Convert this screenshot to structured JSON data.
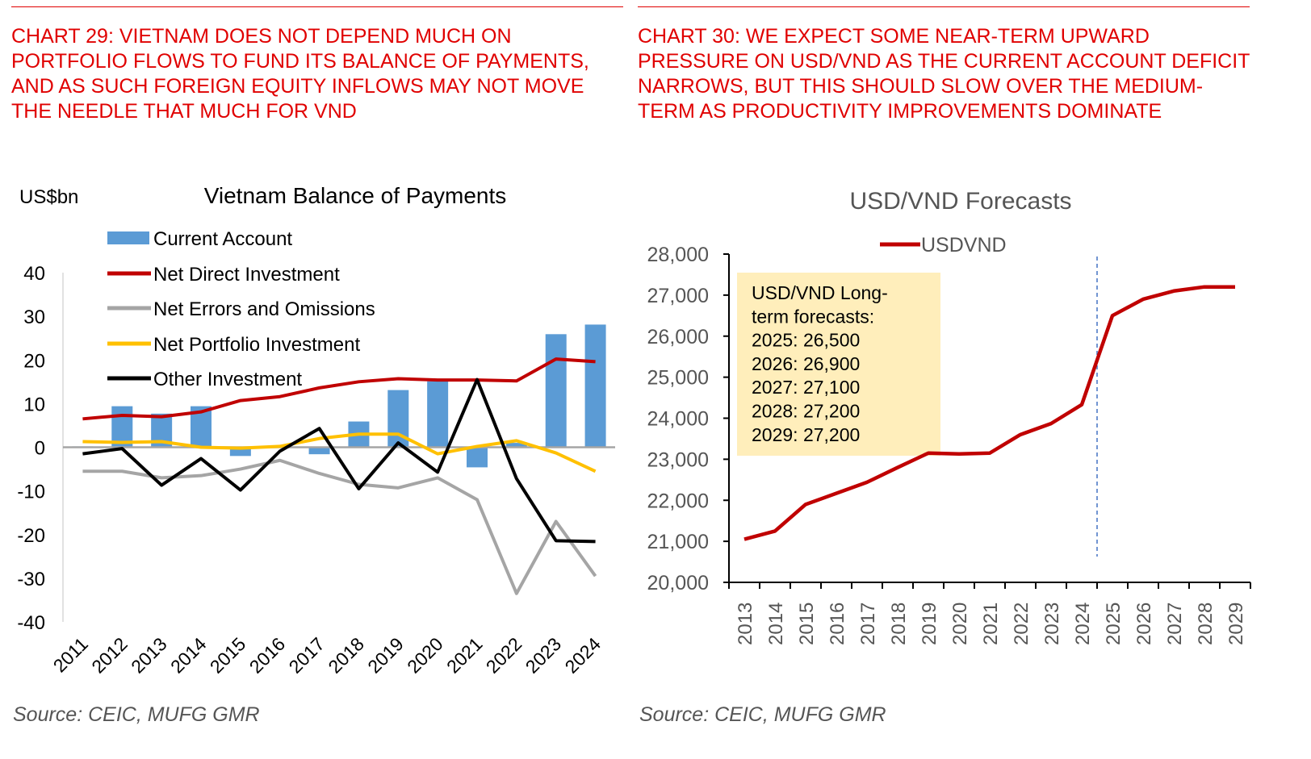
{
  "left": {
    "header": "Chart 29: Vietnam does not depend much on portfolio flows to fund its balance of payments, and as such foreign equity inflows may not move the needle that much for VND",
    "source": "Source: CEIC, MUFG GMR"
  },
  "right": {
    "header": "Chart 30: We expect some near-term upward pressure on USD/VND as the current account deficit narrows, but this should slow over the medium-term as productivity improvements dominate",
    "source": "Source: CEIC, MUFG GMR"
  },
  "chart_data": [
    {
      "type": "bar+line",
      "title": "Vietnam Balance of Payments",
      "ylabel": "US$bn",
      "ylim": [
        -40,
        40
      ],
      "yticks": [
        40,
        30,
        20,
        10,
        0,
        -10,
        -20,
        -30,
        -40
      ],
      "categories": [
        "2011",
        "2012",
        "2013",
        "2014",
        "2015",
        "2016",
        "2017",
        "2018",
        "2019",
        "2020",
        "2021",
        "2022",
        "2023",
        "2024"
      ],
      "legend_position": "top-left",
      "series": [
        {
          "name": "Current Account",
          "kind": "bar",
          "color": "#5b9bd5",
          "values": [
            0.2,
            9.4,
            7.7,
            9.4,
            -2.0,
            0.3,
            -1.6,
            5.9,
            13.1,
            15.1,
            -4.6,
            1.0,
            25.9,
            28.1
          ]
        },
        {
          "name": "Net Direct Investment",
          "kind": "line",
          "color": "#c00000",
          "values": [
            6.5,
            7.3,
            7.0,
            8.1,
            10.7,
            11.6,
            13.6,
            15.0,
            15.7,
            15.4,
            15.4,
            15.2,
            20.2,
            19.6
          ]
        },
        {
          "name": "Net Errors and Omissions",
          "kind": "line",
          "color": "#a5a5a5",
          "values": [
            -5.5,
            -5.5,
            -7.0,
            -6.5,
            -5.0,
            -3.0,
            -6.0,
            -8.5,
            -9.3,
            -7.0,
            -12.0,
            -33.5,
            -17.0,
            -29.5
          ]
        },
        {
          "name": "Net Portfolio Investment",
          "kind": "line",
          "color": "#ffc000",
          "values": [
            1.3,
            1.1,
            1.3,
            0.0,
            -0.2,
            0.2,
            2.0,
            3.0,
            3.0,
            -1.5,
            0.2,
            1.5,
            -1.3,
            -5.5
          ]
        },
        {
          "name": "Other Investment",
          "kind": "line",
          "color": "#000000",
          "values": [
            -1.5,
            -0.3,
            -8.7,
            -2.6,
            -9.8,
            -0.9,
            4.3,
            -9.5,
            1.0,
            -5.7,
            15.5,
            -7.2,
            -21.4,
            -21.6
          ]
        }
      ]
    },
    {
      "type": "line",
      "title": "USD/VND Forecasts",
      "ylim": [
        20000,
        28000
      ],
      "yticks": [
        "28,000",
        "27,000",
        "26,000",
        "25,000",
        "24,000",
        "23,000",
        "22,000",
        "21,000",
        "20,000"
      ],
      "categories": [
        "2013",
        "2014",
        "2015",
        "2016",
        "2017",
        "2018",
        "2019",
        "2020",
        "2021",
        "2022",
        "2023",
        "2024",
        "2025",
        "2026",
        "2027",
        "2028",
        "2029"
      ],
      "legend_position": "top-center",
      "forecast_divider_between": [
        "2024",
        "2025"
      ],
      "series": [
        {
          "name": "USDVND",
          "color": "#c00000",
          "values": [
            21050,
            21250,
            21900,
            22170,
            22440,
            22800,
            23150,
            23130,
            23150,
            23600,
            23870,
            24330,
            26500,
            26900,
            27100,
            27200,
            27200
          ]
        }
      ],
      "annotation": {
        "lines": [
          "USD/VND Long-",
          "term forecasts:",
          "2025: 26,500",
          "2026: 26,900",
          "2027: 27,100",
          "2028: 27,200",
          "2029: 27,200"
        ],
        "background": "#ffeebb"
      }
    }
  ]
}
